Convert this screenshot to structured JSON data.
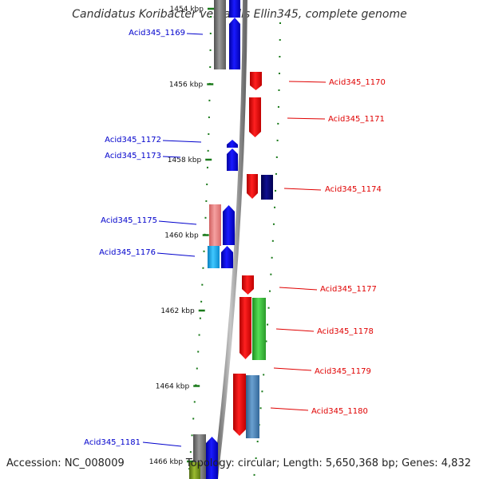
{
  "title": "Candidatus Koribacter versatilis Ellin345, complete genome",
  "footer": {
    "accession": "Accession: NC_008009",
    "topology": "Topology: circular; Length: 5,650,368 bp; Genes: 4,832"
  },
  "ruler": [
    {
      "id": "tick-1454",
      "label": "1454 kbp",
      "kbp": 1454
    },
    {
      "id": "tick-1456",
      "label": "1456 kbp",
      "kbp": 1456
    },
    {
      "id": "tick-1458",
      "label": "1458 kbp",
      "kbp": 1458
    },
    {
      "id": "tick-1460",
      "label": "1460 kbp",
      "kbp": 1460
    },
    {
      "id": "tick-1462",
      "label": "1462 kbp",
      "kbp": 1462
    },
    {
      "id": "tick-1464",
      "label": "1464 kbp",
      "kbp": 1464
    },
    {
      "id": "tick-1466",
      "label": "1466 kbp",
      "kbp": 1466
    }
  ],
  "genes": [
    {
      "id": "gene-1169",
      "label": "Acid345_1169",
      "strand": "minus",
      "color": "#0000ff"
    },
    {
      "id": "gene-1170",
      "label": "Acid345_1170",
      "strand": "plus",
      "color": "#ff0000"
    },
    {
      "id": "gene-1171",
      "label": "Acid345_1171",
      "strand": "plus",
      "color": "#ff0000"
    },
    {
      "id": "gene-1172",
      "label": "Acid345_1172",
      "strand": "minus",
      "color": "#0000ff"
    },
    {
      "id": "gene-1173",
      "label": "Acid345_1173",
      "strand": "minus",
      "color": "#0000ff"
    },
    {
      "id": "gene-1174",
      "label": "Acid345_1174",
      "strand": "plus",
      "color": "#ff0000"
    },
    {
      "id": "gene-1175",
      "label": "Acid345_1175",
      "strand": "minus",
      "color": "#0000ff"
    },
    {
      "id": "gene-1176",
      "label": "Acid345_1176",
      "strand": "minus",
      "color": "#0000ff"
    },
    {
      "id": "gene-1177",
      "label": "Acid345_1177",
      "strand": "plus",
      "color": "#ff0000"
    },
    {
      "id": "gene-1178",
      "label": "Acid345_1178",
      "strand": "plus",
      "color": "#ff0000"
    },
    {
      "id": "gene-1179",
      "label": "Acid345_1179",
      "strand": "plus",
      "color": "#ff0000"
    },
    {
      "id": "gene-1180",
      "label": "Acid345_1180",
      "strand": "plus",
      "color": "#ff0000"
    },
    {
      "id": "gene-1181",
      "label": "Acid345_1181",
      "strand": "minus",
      "color": "#0000ff"
    }
  ],
  "colors": {
    "backbone": "#8a8a8a",
    "ruler_tick": "#1a7a1a",
    "plus_strand": "#ff0000",
    "minus_strand": "#0000ff",
    "cog_dark_blue": "#000080",
    "cog_green": "#33cc33",
    "cog_steel_blue": "#4682b4",
    "cog_pink": "#f08080",
    "cog_cyan": "#1eaaf0",
    "cog_gray": "#808080",
    "cog_olive": "#7a9a1a"
  }
}
